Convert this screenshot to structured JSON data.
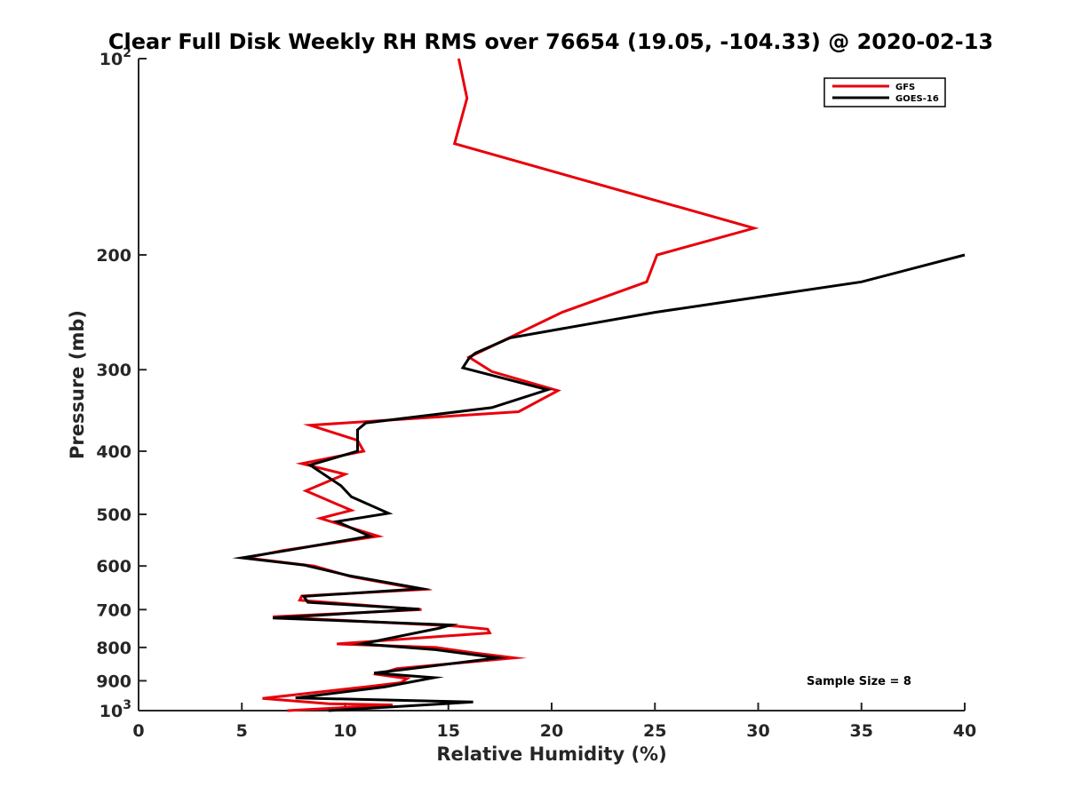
{
  "chart_data": {
    "type": "line",
    "title": "Clear Full Disk Weekly RH RMS over 76654 (19.05, -104.33) @ 2020-02-13",
    "xlabel": "Relative Humidity (%)",
    "ylabel": "Pressure (mb)",
    "xlim": [
      0,
      40
    ],
    "ylim": [
      100,
      1000
    ],
    "yscale": "log",
    "y_reversed": true,
    "x_ticks": [
      "0",
      "5",
      "10",
      "15",
      "20",
      "25",
      "30",
      "35",
      "40"
    ],
    "x_tick_values": [
      0,
      5,
      10,
      15,
      20,
      25,
      30,
      35,
      40
    ],
    "y_ticks": [
      "10^2",
      "200",
      "300",
      "400",
      "500",
      "600",
      "700",
      "800",
      "900",
      "10^3"
    ],
    "y_tick_values": [
      100,
      200,
      300,
      400,
      500,
      600,
      700,
      800,
      900,
      1000
    ],
    "legend_position": "top-right",
    "annotation": "Sample Size = 8",
    "series": [
      {
        "name": "GFS",
        "color": "#e8000b",
        "points": [
          [
            15.5,
            100
          ],
          [
            15.9,
            115
          ],
          [
            15.3,
            135
          ],
          [
            29.8,
            182
          ],
          [
            25.1,
            200
          ],
          [
            24.6,
            220
          ],
          [
            20.5,
            245
          ],
          [
            16.0,
            287
          ],
          [
            17.1,
            302
          ],
          [
            20.3,
            323
          ],
          [
            18.4,
            348
          ],
          [
            8.3,
            365
          ],
          [
            10.6,
            385
          ],
          [
            10.9,
            400
          ],
          [
            7.9,
            418
          ],
          [
            10.0,
            434
          ],
          [
            8.1,
            460
          ],
          [
            10.3,
            493
          ],
          [
            8.8,
            507
          ],
          [
            11.6,
            540
          ],
          [
            7.0,
            568
          ],
          [
            5.2,
            583
          ],
          [
            8.5,
            600
          ],
          [
            10.3,
            623
          ],
          [
            13.7,
            652
          ],
          [
            7.9,
            667
          ],
          [
            7.8,
            677
          ],
          [
            13.7,
            700
          ],
          [
            6.5,
            718
          ],
          [
            15.4,
            742
          ],
          [
            16.9,
            750
          ],
          [
            17.0,
            760
          ],
          [
            9.6,
            790
          ],
          [
            14.4,
            800
          ],
          [
            16.2,
            815
          ],
          [
            18.2,
            830
          ],
          [
            12.5,
            862
          ],
          [
            11.6,
            880
          ],
          [
            13.0,
            893
          ],
          [
            12.7,
            906
          ],
          [
            11.2,
            918
          ],
          [
            6.0,
            958
          ],
          [
            9.2,
            976
          ],
          [
            12.3,
            980
          ],
          [
            7.2,
            1000
          ]
        ]
      },
      {
        "name": "GOES-16",
        "color": "#000000",
        "points": [
          [
            40,
            200
          ],
          [
            35,
            220
          ],
          [
            25,
            245
          ],
          [
            18.0,
            268
          ],
          [
            16.3,
            283
          ],
          [
            16.0,
            288
          ],
          [
            15.7,
            298
          ],
          [
            17.8,
            310
          ],
          [
            19.8,
            322
          ],
          [
            17.1,
            343
          ],
          [
            11.0,
            362
          ],
          [
            10.6,
            371
          ],
          [
            10.6,
            400
          ],
          [
            8.3,
            420
          ],
          [
            9.8,
            452
          ],
          [
            10.3,
            470
          ],
          [
            12.1,
            498
          ],
          [
            9.6,
            513
          ],
          [
            11.2,
            540
          ],
          [
            7.2,
            568
          ],
          [
            5.0,
            583
          ],
          [
            8.0,
            598
          ],
          [
            10.2,
            621
          ],
          [
            13.7,
            650
          ],
          [
            8.0,
            668
          ],
          [
            8.2,
            682
          ],
          [
            13.6,
            699
          ],
          [
            6.5,
            721
          ],
          [
            15.1,
            739
          ],
          [
            14.6,
            747
          ],
          [
            10.8,
            790
          ],
          [
            14.3,
            806
          ],
          [
            17.4,
            830
          ],
          [
            12.7,
            866
          ],
          [
            11.4,
            876
          ],
          [
            14.3,
            890
          ],
          [
            11.9,
            920
          ],
          [
            7.6,
            956
          ],
          [
            16.2,
            970
          ],
          [
            9.2,
            1000
          ]
        ]
      }
    ]
  }
}
